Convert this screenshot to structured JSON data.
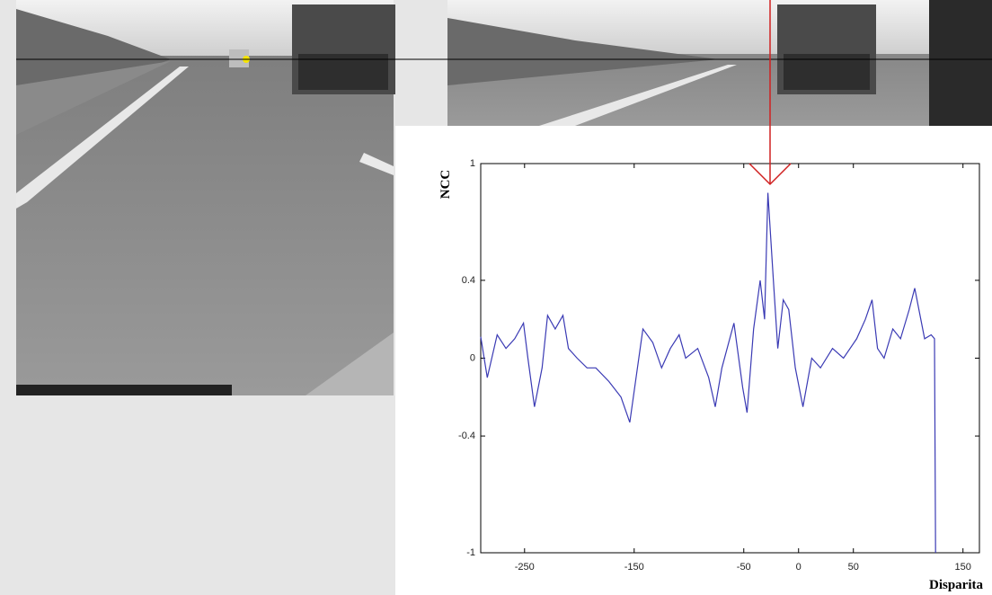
{
  "chart_data": {
    "type": "line",
    "xlabel": "Disparita",
    "ylabel": "NCC",
    "x": [
      -290,
      -284,
      -275,
      -267,
      -259,
      -251,
      -247,
      -241,
      -234,
      -229,
      -222,
      -215,
      -210,
      -202,
      -193,
      -185,
      -173,
      -162,
      -154,
      -147,
      -142,
      -133,
      -125,
      -117,
      -109,
      -103,
      -92,
      -82,
      -76,
      -70,
      -59,
      -51,
      -47,
      -41,
      -35,
      -31,
      -28,
      -23,
      -19,
      -14,
      -9,
      -3,
      4,
      12,
      20,
      31,
      41,
      53,
      61,
      67,
      72,
      78,
      86,
      93,
      101,
      106,
      115,
      121,
      124,
      125
    ],
    "values": [
      0.11,
      -0.1,
      0.12,
      0.05,
      0.1,
      0.18,
      0.0,
      -0.25,
      -0.05,
      0.22,
      0.15,
      0.22,
      0.05,
      0.0,
      -0.05,
      -0.05,
      -0.12,
      -0.2,
      -0.33,
      -0.05,
      0.15,
      0.08,
      -0.05,
      0.05,
      0.12,
      0.0,
      0.05,
      -0.1,
      -0.25,
      -0.05,
      0.18,
      -0.15,
      -0.28,
      0.15,
      0.4,
      0.2,
      0.85,
      0.4,
      0.05,
      0.3,
      0.25,
      -0.05,
      -0.25,
      0.0,
      -0.05,
      0.05,
      0.0,
      0.1,
      0.2,
      0.3,
      0.05,
      0.0,
      0.15,
      0.1,
      0.25,
      0.36,
      0.1,
      0.12,
      0.1,
      -1
    ],
    "color": "#3a3ab4",
    "xlim": [
      -290,
      165
    ],
    "ylim": [
      -1,
      1
    ],
    "xticks": [
      -250,
      -150,
      -50,
      0,
      50,
      150
    ],
    "yticks": [
      -1,
      -0.4,
      0,
      0.4,
      1
    ]
  }
}
